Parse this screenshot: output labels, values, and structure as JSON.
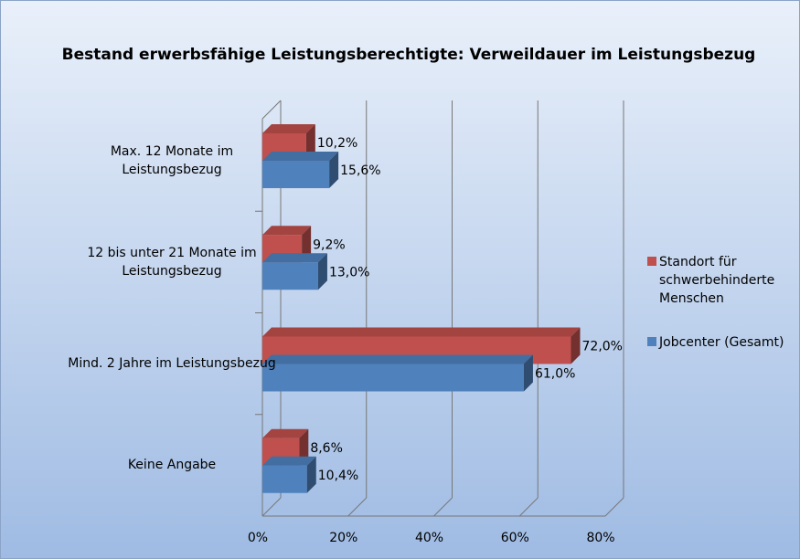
{
  "chart_data": {
    "type": "bar",
    "orientation": "horizontal",
    "title": "Bestand erwerbsfähige Leistungsberechtigte: Verweildauer im Leistungsbezug",
    "categories": [
      "Max. 12 Monate im Leistungsbezug",
      "12 bis unter 21 Monate im Leistungsbezug",
      "Mind. 2 Jahre im Leistungsbezug",
      "Keine Angabe"
    ],
    "series": [
      {
        "name": "Standort für schwerbehinderte Menschen",
        "color": "#c0504d",
        "values": [
          10.2,
          9.2,
          72.0,
          8.6
        ],
        "value_labels": [
          "10,2%",
          "9,2%",
          "72,0%",
          "8,6%"
        ]
      },
      {
        "name": "Jobcenter (Gesamt)",
        "color": "#4f81bd",
        "values": [
          15.6,
          13.0,
          61.0,
          10.4
        ],
        "value_labels": [
          "15,6%",
          "13,0%",
          "61,0%",
          "10,4%"
        ]
      }
    ],
    "xlim": [
      0,
      80
    ],
    "xticks": [
      {
        "value": 0,
        "label": "0%"
      },
      {
        "value": 20,
        "label": "20%"
      },
      {
        "value": 40,
        "label": "40%"
      },
      {
        "value": 60,
        "label": "60%"
      },
      {
        "value": 80,
        "label": "80%"
      }
    ],
    "grid": true,
    "legend": "right"
  }
}
